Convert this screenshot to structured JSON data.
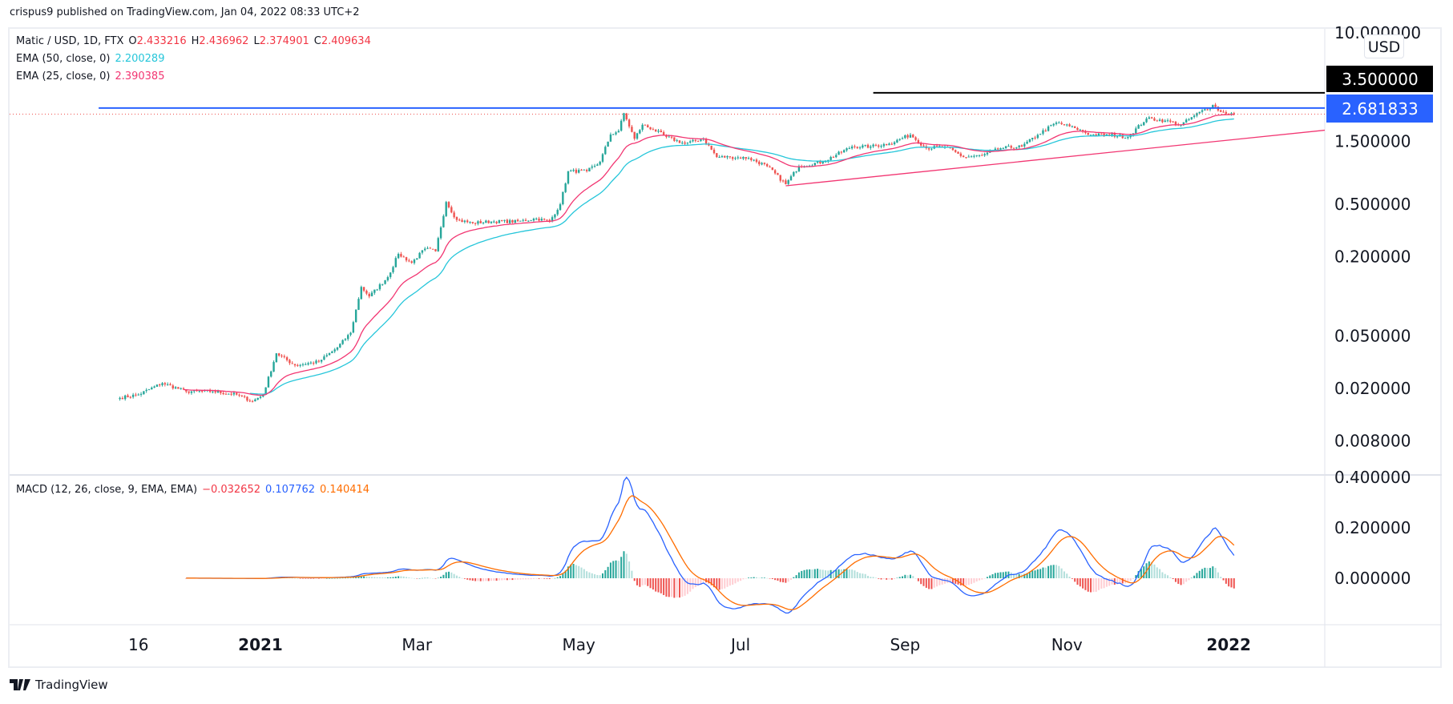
{
  "header": {
    "published": "crispus9 published on TradingView.com, Jan 04, 2022 08:33 UTC+2"
  },
  "legend": {
    "symbol": "Matic / USD, 1D, FTX",
    "o_label": "O",
    "o": "2.433216",
    "h_label": "H",
    "h": "2.436962",
    "l_label": "L",
    "l": "2.374901",
    "c_label": "C",
    "c": "2.409634",
    "ema50_label": "EMA (50, close, 0)",
    "ema50": "2.200289",
    "ema25_label": "EMA (25, close, 0)",
    "ema25": "2.390385",
    "macd_label": "MACD (12, 26, close, 9, EMA, EMA)",
    "macd_hist": "−0.032652",
    "macd": "0.107762",
    "macd_signal": "0.140414"
  },
  "price_axis": {
    "currency": "USD",
    "ticks": [
      "10.000000",
      "1.500000",
      "0.500000",
      "0.200000",
      "0.050000",
      "0.020000",
      "0.008000"
    ],
    "tick_values": [
      10,
      1.5,
      0.5,
      0.2,
      0.05,
      0.02,
      0.008
    ],
    "resistance_label": "3.500000",
    "support_label": "2.681833"
  },
  "macd_axis": {
    "ticks": [
      "0.400000",
      "0.200000",
      "0.000000"
    ],
    "tick_values": [
      0.4,
      0.2,
      0.0
    ]
  },
  "time_axis": {
    "ticks": [
      {
        "label": "16",
        "date": "2020-11-16",
        "bold": false
      },
      {
        "label": "2021",
        "date": "2021-01-01",
        "bold": true
      },
      {
        "label": "Mar",
        "date": "2021-03-01",
        "bold": false
      },
      {
        "label": "May",
        "date": "2021-05-01",
        "bold": false
      },
      {
        "label": "Jul",
        "date": "2021-07-01",
        "bold": false
      },
      {
        "label": "Sep",
        "date": "2021-09-01",
        "bold": false
      },
      {
        "label": "Nov",
        "date": "2021-11-01",
        "bold": false
      },
      {
        "label": "2022",
        "date": "2022-01-01",
        "bold": true
      }
    ]
  },
  "footer": {
    "brand": "TradingView"
  },
  "colors": {
    "up": "#26a69a",
    "down": "#ef5350",
    "ema50": "#26c6da",
    "ema25": "#f23672",
    "macd": "#2962ff",
    "signal": "#ff6d00",
    "support": "#2962ff",
    "resistance": "#000000",
    "trendline": "#f23672",
    "hist_up": "#26a69a",
    "hist_up_weak": "#b2dfdb",
    "hist_down": "#ef5350",
    "hist_down_weak": "#ffcdd2"
  },
  "chart_data": {
    "type": "candlestick",
    "scale": "log",
    "title": "Matic / USD, 1D, FTX",
    "ylim": [
      0.008,
      10
    ],
    "close_anchors": [
      [
        "2020-11-09",
        0.017
      ],
      [
        "2020-11-16",
        0.018
      ],
      [
        "2020-11-25",
        0.022
      ],
      [
        "2020-12-04",
        0.019
      ],
      [
        "2020-12-14",
        0.019
      ],
      [
        "2020-12-23",
        0.018
      ],
      [
        "2020-12-29",
        0.016
      ],
      [
        "2021-01-02",
        0.018
      ],
      [
        "2021-01-07",
        0.037
      ],
      [
        "2021-01-14",
        0.03
      ],
      [
        "2021-01-23",
        0.032
      ],
      [
        "2021-01-30",
        0.041
      ],
      [
        "2021-02-04",
        0.053
      ],
      [
        "2021-02-08",
        0.118
      ],
      [
        "2021-02-11",
        0.1
      ],
      [
        "2021-02-18",
        0.14
      ],
      [
        "2021-02-22",
        0.21
      ],
      [
        "2021-02-27",
        0.18
      ],
      [
        "2021-03-04",
        0.23
      ],
      [
        "2021-03-08",
        0.22
      ],
      [
        "2021-03-12",
        0.52
      ],
      [
        "2021-03-16",
        0.38
      ],
      [
        "2021-03-22",
        0.36
      ],
      [
        "2021-03-29",
        0.37
      ],
      [
        "2021-04-08",
        0.37
      ],
      [
        "2021-04-15",
        0.39
      ],
      [
        "2021-04-20",
        0.37
      ],
      [
        "2021-04-24",
        0.5
      ],
      [
        "2021-04-27",
        0.89
      ],
      [
        "2021-05-04",
        0.89
      ],
      [
        "2021-05-09",
        1.05
      ],
      [
        "2021-05-13",
        1.69
      ],
      [
        "2021-05-16",
        1.8
      ],
      [
        "2021-05-18",
        2.45
      ],
      [
        "2021-05-22",
        1.57
      ],
      [
        "2021-05-25",
        2.0
      ],
      [
        "2021-05-29",
        1.85
      ],
      [
        "2021-06-03",
        1.62
      ],
      [
        "2021-06-10",
        1.44
      ],
      [
        "2021-06-17",
        1.57
      ],
      [
        "2021-06-22",
        1.14
      ],
      [
        "2021-06-27",
        1.14
      ],
      [
        "2021-07-04",
        1.12
      ],
      [
        "2021-07-11",
        0.97
      ],
      [
        "2021-07-18",
        0.71
      ],
      [
        "2021-07-23",
        0.97
      ],
      [
        "2021-08-01",
        1.05
      ],
      [
        "2021-08-12",
        1.37
      ],
      [
        "2021-08-19",
        1.37
      ],
      [
        "2021-08-26",
        1.44
      ],
      [
        "2021-09-03",
        1.68
      ],
      [
        "2021-09-09",
        1.33
      ],
      [
        "2021-09-16",
        1.37
      ],
      [
        "2021-09-23",
        1.14
      ],
      [
        "2021-09-30",
        1.17
      ],
      [
        "2021-10-07",
        1.33
      ],
      [
        "2021-10-15",
        1.37
      ],
      [
        "2021-10-21",
        1.68
      ],
      [
        "2021-10-28",
        2.08
      ],
      [
        "2021-11-04",
        1.89
      ],
      [
        "2021-11-10",
        1.68
      ],
      [
        "2021-11-17",
        1.68
      ],
      [
        "2021-11-24",
        1.62
      ],
      [
        "2021-12-01",
        2.23
      ],
      [
        "2021-12-08",
        2.15
      ],
      [
        "2021-12-14",
        2.0
      ],
      [
        "2021-12-19",
        2.35
      ],
      [
        "2021-12-26",
        2.83
      ],
      [
        "2021-12-29",
        2.51
      ],
      [
        "2022-01-03",
        2.41
      ]
    ],
    "horizontal_lines": [
      {
        "value": 3.5,
        "from_date": "2021-08-20",
        "color": "#000000"
      },
      {
        "value": 2.681833,
        "from_date": "2020-11-01",
        "color": "#2962ff"
      }
    ],
    "trendline": {
      "from": [
        "2021-07-18",
        0.69
      ],
      "to": [
        "2022-03-06",
        2.08
      ]
    },
    "indicators": [
      "EMA 50",
      "EMA 25",
      "MACD (12, 26, 9)"
    ],
    "grid": false
  }
}
